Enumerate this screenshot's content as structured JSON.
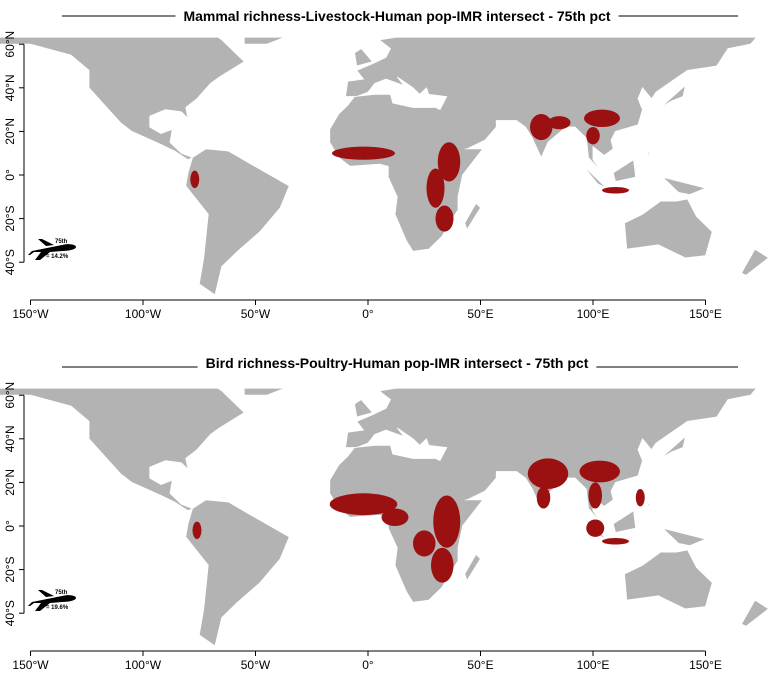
{
  "panels": [
    {
      "title": "Mammal richness-Livestock-Human pop-IMR intersect - 75th pct",
      "inset": {
        "label": "75th",
        "value": "= 14.2%"
      }
    },
    {
      "title": "Bird richness-Poultry-Human pop-IMR intersect - 75th pct",
      "inset": {
        "label": "75th",
        "value": "= 19.6%"
      }
    }
  ],
  "axes": {
    "xticks": [
      {
        "value": -150,
        "label": "150°W"
      },
      {
        "value": -100,
        "label": "100°W"
      },
      {
        "value": -50,
        "label": "50°W"
      },
      {
        "value": 0,
        "label": "0°"
      },
      {
        "value": 50,
        "label": "50°E"
      },
      {
        "value": 100,
        "label": "100°E"
      },
      {
        "value": 150,
        "label": "150°E"
      }
    ],
    "yticks": [
      {
        "value": 60,
        "label": "60°N"
      },
      {
        "value": 40,
        "label": "40°N"
      },
      {
        "value": 20,
        "label": "20°N"
      },
      {
        "value": 0,
        "label": "0°"
      },
      {
        "value": -20,
        "label": "20°S"
      },
      {
        "value": -40,
        "label": "40°S"
      }
    ]
  }
}
